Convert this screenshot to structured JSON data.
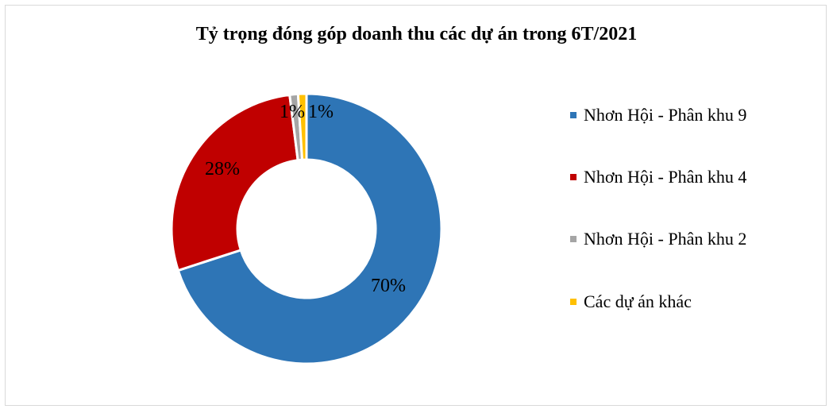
{
  "chart_data": {
    "type": "pie",
    "title": "Tỷ trọng đóng góp doanh thu các dự án trong 6T/2021",
    "categories": [
      "Nhơn Hội - Phân khu 9",
      "Nhơn Hội - Phân khu 4",
      "Nhơn Hội - Phân khu 2",
      "Các dự án khác"
    ],
    "values": [
      70,
      28,
      1,
      1
    ],
    "data_labels": [
      "70%",
      "28%",
      "1%",
      "1%"
    ],
    "colors": [
      "#2e75b6",
      "#c00000",
      "#a5a5a5",
      "#ffc000"
    ],
    "donut": true,
    "legend_position": "right"
  }
}
